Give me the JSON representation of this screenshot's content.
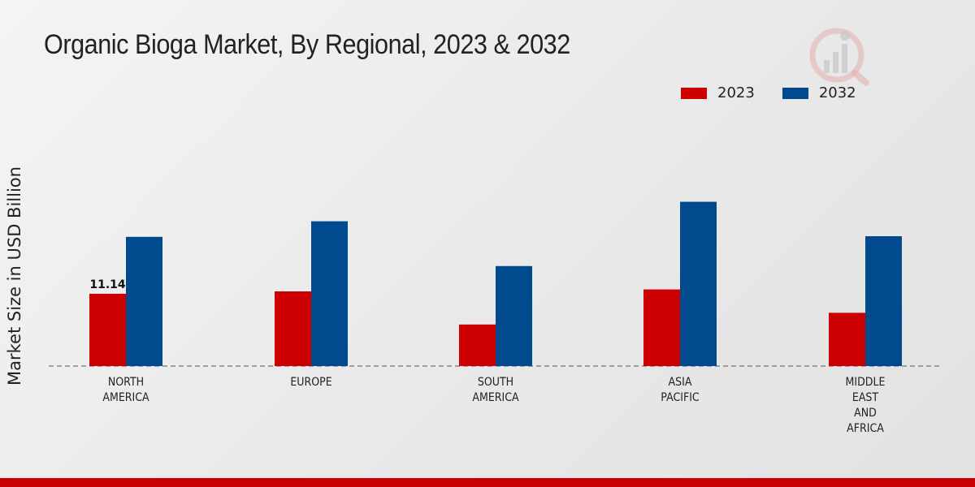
{
  "title": "Organic Bioga Market, By Regional, 2023 & 2032",
  "colors": {
    "s2023": "#cc0000",
    "s2032": "#004a8d",
    "bottom_bar": "#c80000"
  },
  "chart_data": {
    "type": "bar",
    "title": "Organic Bioga Market, By Regional, 2023 & 2032",
    "xlabel": "",
    "ylabel": "Market Size in USD Billion",
    "categories": [
      [
        "NORTH",
        "AMERICA"
      ],
      [
        "EUROPE"
      ],
      [
        "SOUTH",
        "AMERICA"
      ],
      [
        "ASIA",
        "PACIFIC"
      ],
      [
        "MIDDLE",
        "EAST",
        "AND",
        "AFRICA"
      ]
    ],
    "series": [
      {
        "name": "2023",
        "color": "#cc0000",
        "values": [
          11.14,
          11.5,
          6.4,
          11.8,
          8.2
        ]
      },
      {
        "name": "2032",
        "color": "#004a8d",
        "values": [
          19.9,
          22.3,
          15.4,
          25.3,
          20.0
        ]
      }
    ],
    "data_labels": [
      {
        "series": 0,
        "index": 0,
        "text": "11.14"
      }
    ],
    "ylim": [
      0,
      40
    ],
    "grid": false,
    "legend": "top-right"
  }
}
